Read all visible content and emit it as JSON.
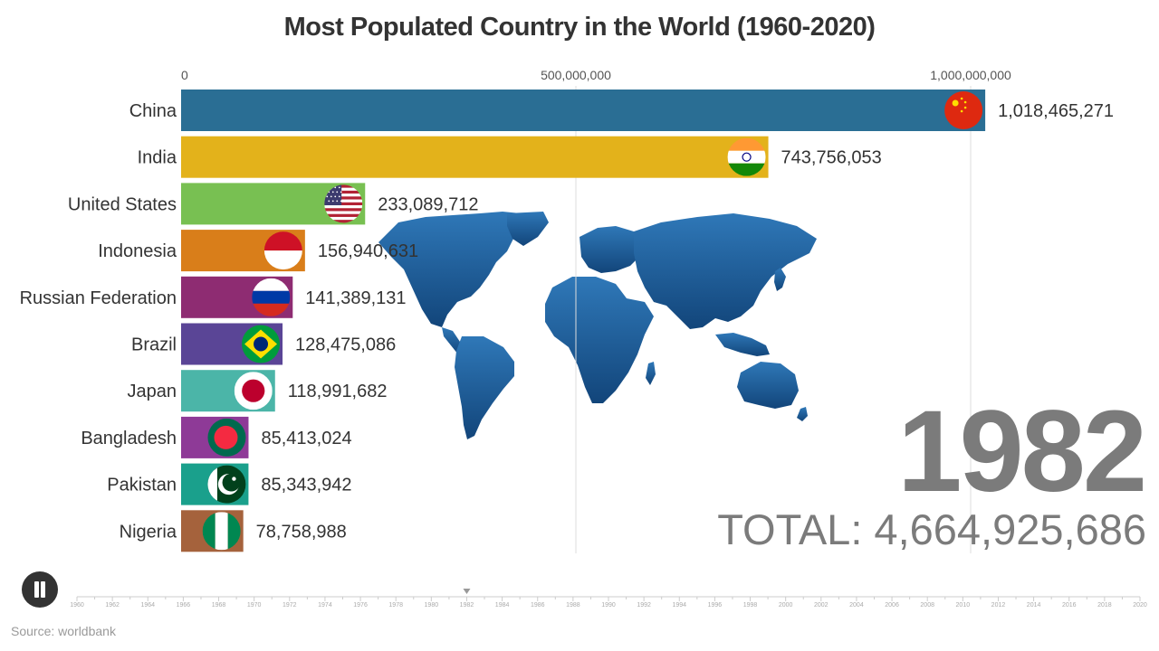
{
  "title": "Most Populated Country in the World (1960-2020)",
  "year_display": "1982",
  "total_display": "TOTAL: 4,664,925,686",
  "source": "Source: worldbank",
  "play_button": {
    "icon": "pause-icon"
  },
  "timeline": {
    "start": 1960,
    "end": 2020,
    "current": 1982,
    "labels": [
      "1960",
      "1962",
      "1964",
      "1966",
      "1968",
      "1970",
      "1972",
      "1974",
      "1976",
      "1978",
      "1980",
      "1982",
      "1984",
      "1986",
      "1988",
      "1990",
      "1992",
      "1994",
      "1996",
      "1998",
      "2000",
      "2002",
      "2004",
      "2006",
      "2008",
      "2010",
      "2012",
      "2014",
      "2016",
      "2018",
      "2020"
    ]
  },
  "chart_data": {
    "type": "bar",
    "orientation": "horizontal",
    "title": "Most Populated Country in the World (1960-2020)",
    "year": 1982,
    "x_ticks": [
      0,
      500000000,
      1000000000
    ],
    "x_tick_labels": [
      "0",
      "500,000,000",
      "1,000,000,000"
    ],
    "xlim": [
      0,
      1000000000
    ],
    "grid": true,
    "categories": [
      "China",
      "India",
      "United States",
      "Indonesia",
      "Russian Federation",
      "Brazil",
      "Japan",
      "Bangladesh",
      "Pakistan",
      "Nigeria"
    ],
    "values": [
      1018465271,
      743756053,
      233089712,
      156940631,
      141389131,
      128475086,
      118991682,
      85413024,
      85343942,
      78758988
    ],
    "value_labels": [
      "1,018,465,271",
      "743,756,053",
      "233,089,712",
      "156,940,631",
      "141,389,131",
      "128,475,086",
      "118,991,682",
      "85,413,024",
      "85,343,942",
      "78,758,988"
    ],
    "colors": [
      "#2a6e94",
      "#e3b21b",
      "#78c052",
      "#d97e1a",
      "#8e2c72",
      "#5a4596",
      "#4bb5a8",
      "#8e3a97",
      "#1aa08c",
      "#a5623c"
    ],
    "flags": [
      "china-flag-icon",
      "india-flag-icon",
      "us-flag-icon",
      "indonesia-flag-icon",
      "russia-flag-icon",
      "brazil-flag-icon",
      "japan-flag-icon",
      "bangladesh-flag-icon",
      "pakistan-flag-icon",
      "nigeria-flag-icon"
    ],
    "background_image": "world-map-icon",
    "map_color": "#1f5e96"
  }
}
